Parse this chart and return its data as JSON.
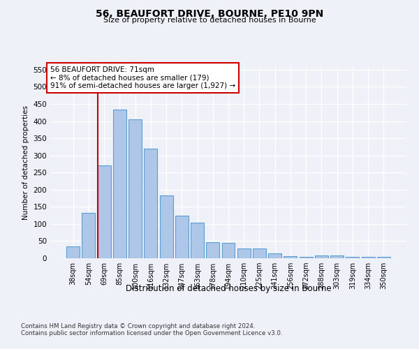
{
  "title1": "56, BEAUFORT DRIVE, BOURNE, PE10 9PN",
  "title2": "Size of property relative to detached houses in Bourne",
  "xlabel": "Distribution of detached houses by size in Bourne",
  "ylabel": "Number of detached properties",
  "categories": [
    "38sqm",
    "54sqm",
    "69sqm",
    "85sqm",
    "100sqm",
    "116sqm",
    "132sqm",
    "147sqm",
    "163sqm",
    "178sqm",
    "194sqm",
    "210sqm",
    "225sqm",
    "241sqm",
    "256sqm",
    "272sqm",
    "288sqm",
    "303sqm",
    "319sqm",
    "334sqm",
    "350sqm"
  ],
  "values": [
    35,
    133,
    270,
    433,
    405,
    320,
    183,
    125,
    103,
    46,
    45,
    29,
    28,
    15,
    7,
    5,
    9,
    8,
    4,
    4,
    5
  ],
  "bar_color": "#aec6e8",
  "bar_edge_color": "#5a9fd4",
  "vline_color": "#cc0000",
  "vline_x_index": 2,
  "annotation_line1": "56 BEAUFORT DRIVE: 71sqm",
  "annotation_line2": "← 8% of detached houses are smaller (179)",
  "annotation_line3": "91% of semi-detached houses are larger (1,927) →",
  "annotation_box_color": "#cc0000",
  "ylim": [
    0,
    560
  ],
  "yticks": [
    0,
    50,
    100,
    150,
    200,
    250,
    300,
    350,
    400,
    450,
    500,
    550
  ],
  "footnote_line1": "Contains HM Land Registry data © Crown copyright and database right 2024.",
  "footnote_line2": "Contains public sector information licensed under the Open Government Licence v3.0.",
  "bg_color": "#eef2f8",
  "plot_bg_color": "#eef2f8"
}
